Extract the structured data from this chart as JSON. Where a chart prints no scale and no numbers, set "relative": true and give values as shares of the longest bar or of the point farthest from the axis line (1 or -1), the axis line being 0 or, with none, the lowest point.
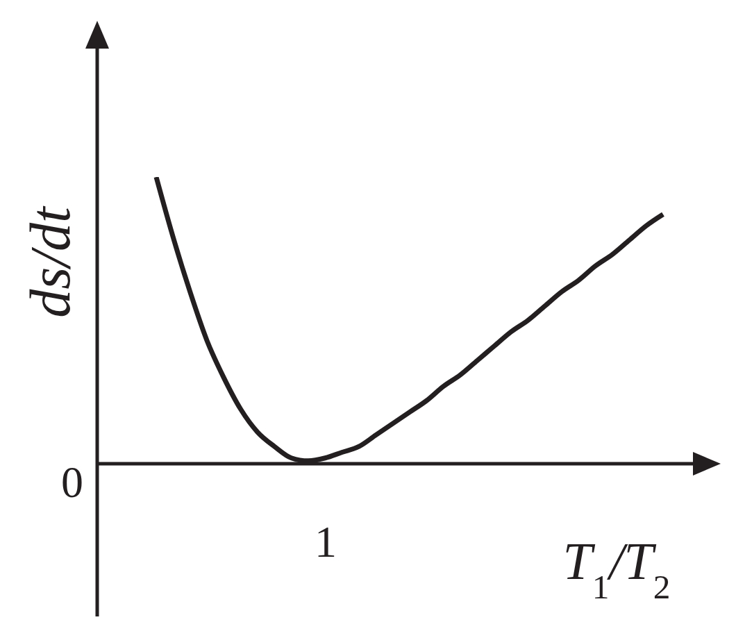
{
  "chart_data": {
    "type": "line",
    "relative": true,
    "xlabel": "T$_{1}$/T$_{2}$",
    "ylabel": "ds/dt",
    "annotations": [
      "0",
      "1"
    ],
    "color": "#231f20",
    "categories": [
      null,
      null,
      null,
      null,
      null,
      null,
      null,
      null,
      null,
      null,
      null,
      null,
      null,
      null,
      null,
      null,
      null,
      null,
      null,
      null,
      null,
      null,
      null,
      null,
      null,
      null,
      null,
      null,
      null,
      null,
      null
    ],
    "values": [
      1,
      0.79,
      0.6,
      0.43,
      0.3,
      0.19,
      0.11,
      0.06,
      0.02,
      0.01,
      0.02,
      0.04,
      0.06,
      0.1,
      0.14,
      0.18,
      0.22,
      0.27,
      0.31,
      0.36,
      0.41,
      0.46,
      0.5,
      0.55,
      0.6,
      0.64,
      0.69,
      0.73,
      0.78,
      0.83,
      0.87
    ]
  }
}
